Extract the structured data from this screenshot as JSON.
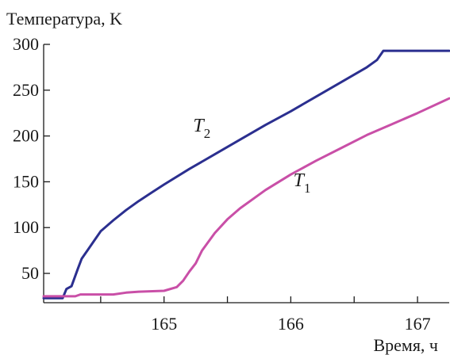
{
  "chart_data": {
    "type": "line",
    "ylabel": "Температура, K",
    "xlabel": "Время, ч",
    "xlim": [
      164.05,
      167.25
    ],
    "ylim": [
      18,
      300
    ],
    "x_ticks": [
      164.5,
      165,
      165.5,
      166,
      166.5,
      167
    ],
    "x_tick_labels": [
      "",
      "165",
      "",
      "166",
      "",
      "167"
    ],
    "y_ticks": [
      50,
      100,
      150,
      200,
      250,
      300
    ],
    "y_tick_labels": [
      "50",
      "100",
      "150",
      "200",
      "250",
      "300"
    ],
    "series": [
      {
        "name": "T",
        "name_sub": "2",
        "color": "#2b2f8f",
        "label_at": [
          165.23,
          205
        ],
        "x": [
          164.05,
          164.2,
          164.23,
          164.27,
          164.32,
          164.35,
          164.4,
          164.45,
          164.5,
          164.6,
          164.7,
          164.8,
          164.9,
          165.0,
          165.2,
          165.4,
          165.6,
          165.8,
          166.0,
          166.2,
          166.4,
          166.6,
          166.68,
          166.73,
          167.25
        ],
        "y": [
          23,
          23,
          33,
          36,
          55,
          66,
          76,
          86,
          96,
          108,
          119,
          129,
          138,
          147,
          164,
          180,
          196,
          212,
          227,
          243,
          259,
          275,
          283,
          293,
          293
        ]
      },
      {
        "name": "T",
        "name_sub": "1",
        "color": "#c94fa7",
        "label_at": [
          166.02,
          145
        ],
        "x": [
          164.05,
          164.3,
          164.34,
          164.6,
          164.7,
          164.8,
          165.0,
          165.1,
          165.15,
          165.2,
          165.25,
          165.3,
          165.4,
          165.5,
          165.6,
          165.8,
          166.0,
          166.2,
          166.4,
          166.6,
          166.8,
          167.0,
          167.25
        ],
        "y": [
          25,
          25,
          27,
          27,
          29,
          30,
          31,
          35,
          42,
          52,
          61,
          75,
          94,
          109,
          121,
          141,
          158,
          173,
          187,
          201,
          213,
          225,
          241
        ]
      }
    ]
  }
}
